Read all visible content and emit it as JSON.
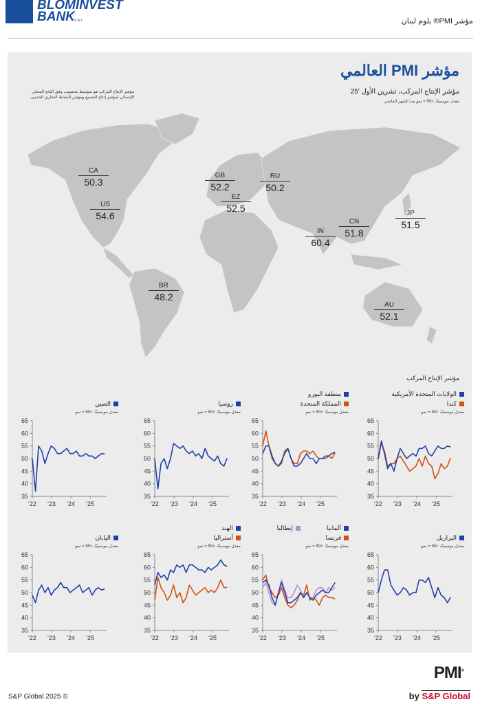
{
  "header": {
    "brand_line1": "BLOMINVEST",
    "brand_line2": "BANK",
    "brand_suffix": "S.A.L",
    "report_title": "مؤشر PMI® بلوم لبنان"
  },
  "main": {
    "title": "مؤشر PMI العالمي",
    "subtitle": "مؤشر الإنتاج المركب، تشرين الأول '25",
    "subnote": "معدل موسميًا، >50 = نمو منذ الشهر الماضي",
    "map_note": "مؤشر الإنتاج المركب هو متوسط محسوب وفق الناتج المحلي الإجمالي لمؤشر إنتاج التصنيع ومؤشر النشاط التجاري الخدمي.",
    "charts_title": "مؤشر الإنتاج المركب",
    "chart_note": "معدل موسميًا، >50 = نمو"
  },
  "map_labels": [
    {
      "code": "CA",
      "value": "50.3"
    },
    {
      "code": "US",
      "value": "54.6"
    },
    {
      "code": "GB",
      "value": "52.2"
    },
    {
      "code": "RU",
      "value": "50.2"
    },
    {
      "code": "EZ",
      "value": "52.5"
    },
    {
      "code": "IN",
      "value": "60.4"
    },
    {
      "code": "CN",
      "value": "51.8"
    },
    {
      "code": "JP",
      "value": "51.5"
    },
    {
      "code": "BR",
      "value": "48.2"
    },
    {
      "code": "AU",
      "value": "52.1"
    }
  ],
  "colors": {
    "blue": "#1f3fa8",
    "orange": "#d4500f",
    "purple": "#b98ad1",
    "accent": "#1a4f9c"
  },
  "chart_data": [
    {
      "type": "line",
      "ylim": [
        35,
        65
      ],
      "yticks": [
        "65",
        "60",
        "55",
        "50",
        "45",
        "40",
        "35"
      ],
      "xticks": [
        "'22",
        "'23",
        "'24",
        "'25"
      ],
      "x_start": 2022.0,
      "x_end": 2025.75,
      "series": [
        {
          "name": "الولايات المتحدة الأمريكية",
          "color": "blue",
          "values": [
            50,
            57,
            52,
            46,
            48,
            45,
            50,
            54,
            52,
            50,
            51,
            52,
            51,
            54,
            54,
            55,
            52,
            51,
            53,
            55,
            54,
            54,
            55,
            54.6
          ]
        },
        {
          "name": "كندا",
          "color": "orange",
          "values": [
            50,
            56,
            53,
            47,
            48,
            48,
            50,
            51,
            49,
            47,
            45,
            46,
            47,
            50,
            47,
            51,
            48,
            47,
            42,
            44,
            48,
            46,
            47,
            50.3
          ]
        }
      ]
    },
    {
      "type": "line",
      "ylim": [
        35,
        65
      ],
      "yticks": [
        "65",
        "60",
        "55",
        "50",
        "45",
        "40",
        "35"
      ],
      "xticks": [
        "'22",
        "'23",
        "'24",
        "'25"
      ],
      "x_start": 2022.0,
      "x_end": 2025.75,
      "series": [
        {
          "name": "منطقة اليورو",
          "color": "blue",
          "values": [
            52,
            55,
            55,
            51,
            48,
            47,
            49,
            52,
            54,
            50,
            47,
            47,
            48,
            50,
            52,
            50,
            50,
            48,
            50,
            50,
            51,
            51,
            52,
            52.5
          ]
        },
        {
          "name": "المملكة المتحدة",
          "color": "orange",
          "values": [
            55,
            61,
            55,
            50,
            48,
            47,
            48,
            53,
            54,
            50,
            48,
            48,
            52,
            53,
            53,
            52,
            53,
            51,
            50,
            50,
            50,
            51,
            50,
            52.2
          ]
        }
      ]
    },
    {
      "type": "line",
      "ylim": [
        35,
        65
      ],
      "yticks": [
        "65",
        "60",
        "55",
        "50",
        "45",
        "40",
        "35"
      ],
      "xticks": [
        "'22",
        "'23",
        "'24",
        "'25"
      ],
      "x_start": 2022.0,
      "x_end": 2025.75,
      "series": [
        {
          "name": "روسيا",
          "color": "blue",
          "values": [
            50,
            38,
            48,
            50,
            46,
            50,
            56,
            55,
            54,
            55,
            53,
            52,
            53,
            51,
            52,
            50,
            54,
            51,
            50,
            49,
            51,
            48,
            47,
            50.2
          ]
        }
      ]
    },
    {
      "type": "line",
      "ylim": [
        35,
        65
      ],
      "yticks": [
        "65",
        "60",
        "55",
        "50",
        "45",
        "40",
        "35"
      ],
      "xticks": [
        "'22",
        "'23",
        "'24",
        "'25"
      ],
      "x_start": 2022.0,
      "x_end": 2025.75,
      "series": [
        {
          "name": "الصين",
          "color": "blue",
          "values": [
            50,
            37,
            55,
            53,
            48,
            52,
            55,
            54,
            52,
            52,
            53,
            54,
            52,
            52,
            53,
            51,
            51,
            52,
            51,
            51,
            50,
            51,
            52,
            51.8
          ]
        }
      ]
    },
    {
      "type": "line",
      "ylim": [
        35,
        65
      ],
      "yticks": [
        "65",
        "60",
        "55",
        "50",
        "45",
        "40",
        "35"
      ],
      "xticks": [
        "'22",
        "'23",
        "'24",
        "'25"
      ],
      "x_start": 2022.0,
      "x_end": 2025.75,
      "series": [
        {
          "name": "البرازيل",
          "color": "blue",
          "values": [
            50,
            55,
            59,
            59,
            53,
            51,
            49,
            50,
            52,
            51,
            49,
            50,
            50,
            55,
            55,
            54,
            56,
            52,
            48,
            52,
            49,
            48,
            46,
            48.2
          ]
        }
      ]
    },
    {
      "type": "line",
      "ylim": [
        35,
        65
      ],
      "yticks": [
        "65",
        "60",
        "55",
        "50",
        "45",
        "40",
        "35"
      ],
      "xticks": [
        "'22",
        "'23",
        "'24",
        "'25"
      ],
      "x_start": 2022.0,
      "x_end": 2025.75,
      "series": [
        {
          "name": "ألمانيا",
          "color": "blue",
          "values": [
            54,
            55,
            53,
            48,
            45,
            50,
            54,
            50,
            46,
            46,
            47,
            48,
            50,
            48,
            50,
            48,
            47,
            49,
            50,
            51,
            50,
            50,
            52,
            54
          ]
        },
        {
          "name": "فرنسا",
          "color": "orange",
          "values": [
            55,
            57,
            52,
            50,
            48,
            49,
            52,
            48,
            45,
            44,
            45,
            47,
            50,
            49,
            53,
            47,
            48,
            47,
            45,
            48,
            49,
            48,
            48,
            47.5
          ]
        },
        {
          "name": "إيطاليا",
          "color": "purple",
          "values": [
            52,
            54,
            50,
            46,
            45,
            50,
            55,
            51,
            48,
            48,
            50,
            53,
            51,
            48,
            50,
            48,
            48,
            51,
            52,
            52,
            50,
            52,
            51,
            52
          ]
        }
      ]
    },
    {
      "type": "line",
      "ylim": [
        35,
        65
      ],
      "yticks": [
        "65",
        "60",
        "55",
        "50",
        "45",
        "40",
        "35"
      ],
      "xticks": [
        "'22",
        "'23",
        "'24",
        "'25"
      ],
      "x_start": 2022.0,
      "x_end": 2025.75,
      "series": [
        {
          "name": "الهند",
          "color": "blue",
          "values": [
            53,
            58,
            56,
            57,
            55,
            59,
            58,
            61,
            60,
            61,
            58,
            61,
            61,
            60,
            59,
            59,
            58,
            60,
            59,
            60,
            61,
            63,
            61,
            60.4
          ]
        },
        {
          "name": "أستراليا",
          "color": "orange",
          "values": [
            47,
            56,
            52,
            50,
            47,
            49,
            53,
            48,
            50,
            46,
            48,
            53,
            51,
            49,
            50,
            51,
            52,
            50,
            51,
            50,
            52,
            55,
            52,
            52.1
          ]
        }
      ]
    },
    {
      "type": "line",
      "ylim": [
        35,
        65
      ],
      "yticks": [
        "65",
        "60",
        "55",
        "50",
        "45",
        "40",
        "35"
      ],
      "xticks": [
        "'22",
        "'23",
        "'24",
        "'25"
      ],
      "x_start": 2022.0,
      "x_end": 2025.75,
      "series": [
        {
          "name": "اليابان",
          "color": "blue",
          "values": [
            49,
            46,
            51,
            53,
            50,
            52,
            49,
            51,
            52,
            54,
            52,
            52,
            50,
            51,
            52,
            53,
            50,
            51,
            52,
            49,
            51,
            52,
            51,
            51.5
          ]
        }
      ]
    }
  ],
  "footer": {
    "copyright": "S&P Global 2025 ©",
    "pmi": "PMI",
    "pmi_reg": "®",
    "by": "by",
    "sp": "S&P Global"
  }
}
